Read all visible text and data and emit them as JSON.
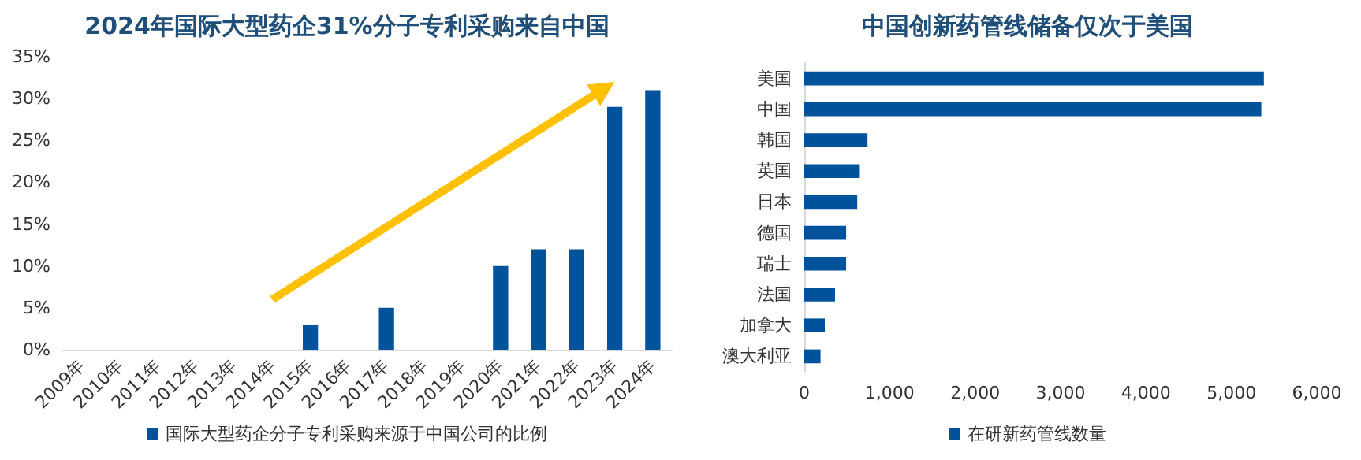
{
  "chart_data": [
    {
      "type": "bar",
      "title": "2024年国际大型药企31%分子专利采购来自中国",
      "categories": [
        "2009年",
        "2010年",
        "2011年",
        "2012年",
        "2013年",
        "2014年",
        "2015年",
        "2016年",
        "2017年",
        "2018年",
        "2019年",
        "2020年",
        "2021年",
        "2022年",
        "2023年",
        "2024年"
      ],
      "series": [
        {
          "name": "国际大型药企分子专利采购来源于中国公司的比例",
          "color": "#00539b",
          "values": [
            0,
            0,
            0,
            0,
            0,
            0,
            3,
            0,
            5,
            0,
            0,
            10,
            12,
            12,
            29,
            31
          ]
        }
      ],
      "ylim": [
        0,
        35
      ],
      "yticks": [
        {
          "value": 0,
          "label": "0%"
        },
        {
          "value": 5,
          "label": "5%"
        },
        {
          "value": 10,
          "label": "10%"
        },
        {
          "value": 15,
          "label": "15%"
        },
        {
          "value": 20,
          "label": "20%"
        },
        {
          "value": 25,
          "label": "25%"
        },
        {
          "value": 30,
          "label": "30%"
        },
        {
          "value": 35,
          "label": "35%"
        }
      ],
      "legend": "bottom",
      "grid": false
    },
    {
      "type": "bar",
      "title": "中国创新药管线储备仅次于美国",
      "orientation": "horizontal",
      "categories": [
        "美国",
        "中国",
        "韩国",
        "英国",
        "日本",
        "德国",
        "瑞士",
        "法国",
        "加拿大",
        "澳大利亚"
      ],
      "series": [
        {
          "name": "在研新药管线数量",
          "color": "#00539b",
          "values": [
            5380,
            5350,
            740,
            650,
            620,
            490,
            490,
            360,
            240,
            190
          ]
        }
      ],
      "xlim": [
        0,
        6000
      ],
      "xticks": [
        {
          "value": 0,
          "label": "0"
        },
        {
          "value": 1000,
          "label": "1,000"
        },
        {
          "value": 2000,
          "label": "2,000"
        },
        {
          "value": 3000,
          "label": "3,000"
        },
        {
          "value": 4000,
          "label": "4,000"
        },
        {
          "value": 5000,
          "label": "5,000"
        },
        {
          "value": 6000,
          "label": "6,000"
        }
      ],
      "legend": "bottom",
      "grid": false
    }
  ]
}
